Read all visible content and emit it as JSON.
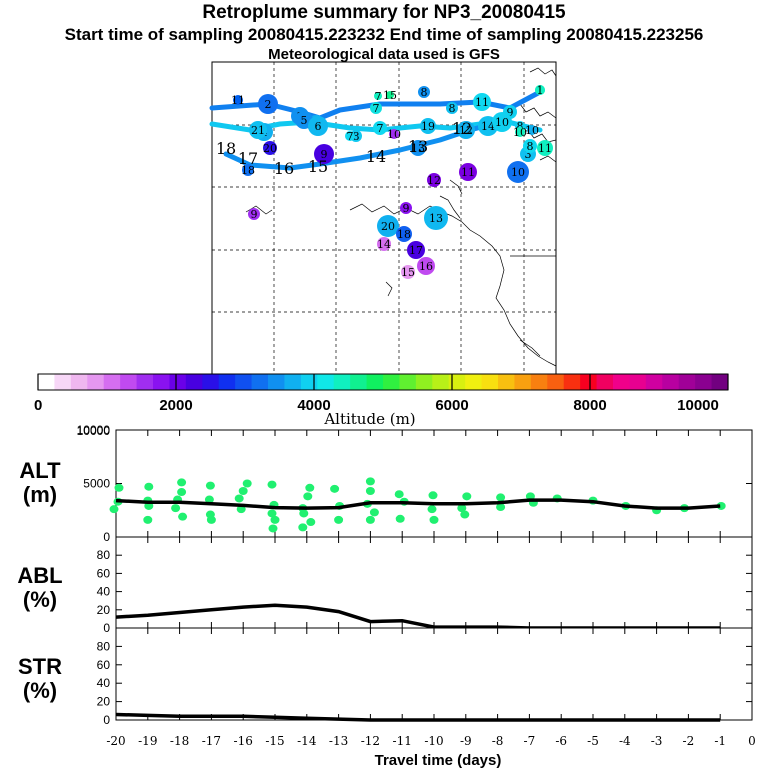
{
  "header": {
    "title": "Retroplume summary for NP3_20080415",
    "line2": "Start time of sampling 20080415.223232     End time of sampling 20080415.223256",
    "line3": "Meteorological data used is GFS"
  },
  "colorbar": {
    "label": "Altitude (m)",
    "ticks": [
      "0",
      "2000",
      "4000",
      "6000",
      "8000",
      "10000"
    ],
    "colors": [
      "#ffffff",
      "#f7d7f7",
      "#efb7ef",
      "#e597f0",
      "#d56ef0",
      "#c04af0",
      "#a02ef0",
      "#8a12f0",
      "#6a00e8",
      "#4800e0",
      "#2a10e8",
      "#1030f0",
      "#1050f0",
      "#1070f0",
      "#1090f0",
      "#10b0f0",
      "#10d0f0",
      "#10e8e8",
      "#10f0c0",
      "#10f090",
      "#10f060",
      "#30f040",
      "#60f030",
      "#90f020",
      "#b8f018",
      "#d8f010",
      "#f0f010",
      "#f8e010",
      "#f8c010",
      "#f8a010",
      "#f88010",
      "#f86010",
      "#f83010",
      "#f80020",
      "#f00060",
      "#f0008a",
      "#e80090",
      "#d000a0",
      "#b800a0",
      "#a00098",
      "#8a0090",
      "#720080"
    ]
  },
  "map": {
    "labels": [
      {
        "t": "11",
        "c": "#0060f0",
        "s": 5
      },
      {
        "t": "2",
        "c": "#1070f0",
        "s": 10
      },
      {
        "t": "3",
        "c": "#1090f0",
        "s": 9
      },
      {
        "t": "4",
        "c": "#10b0f0",
        "s": 9
      },
      {
        "t": "5",
        "c": "#1090f0",
        "s": 9
      },
      {
        "t": "6",
        "c": "#10b8f0",
        "s": 10
      },
      {
        "t": "7",
        "c": "#10e0e0",
        "s": 6
      },
      {
        "t": "7",
        "c": "#10d8f0",
        "s": 7
      },
      {
        "t": "7",
        "c": "#10f0c0",
        "s": 4
      },
      {
        "t": "15",
        "c": "#10f090",
        "s": 4
      },
      {
        "t": "8",
        "c": "#1090f0",
        "s": 6
      },
      {
        "t": "8",
        "c": "#10c0f0",
        "s": 6
      },
      {
        "t": "11",
        "c": "#10d8f0",
        "s": 9
      },
      {
        "t": "9",
        "c": "#10d0f0",
        "s": 7
      },
      {
        "t": "6",
        "c": "#10f0c0",
        "s": 5
      },
      {
        "t": "10",
        "c": "#10b0f0",
        "s": 5
      },
      {
        "t": "4",
        "c": "#10b0f0",
        "s": 9
      },
      {
        "t": "21",
        "c": "#10c0f0",
        "s": 9
      },
      {
        "t": "8",
        "c": "#10c8f0",
        "s": 6
      },
      {
        "t": "7",
        "c": "#10d8f0",
        "s": 5
      },
      {
        "t": "10",
        "c": "#a02ef0",
        "s": 5
      },
      {
        "t": "19",
        "c": "#10c0f0",
        "s": 8
      },
      {
        "t": "12",
        "c": "#10b0f0",
        "s": 9
      },
      {
        "t": "13",
        "c": "#1090f0",
        "s": 8
      },
      {
        "t": "14",
        "c": "#10c0f0",
        "s": 10
      },
      {
        "t": "10",
        "c": "#10d0f0",
        "s": 10
      },
      {
        "t": "8",
        "c": "#10d0f0",
        "s": 5
      },
      {
        "t": "10",
        "c": "#10f0c0",
        "s": 5
      },
      {
        "t": "3",
        "c": "#10c0f0",
        "s": 8
      },
      {
        "t": "8",
        "c": "#10d8f0",
        "s": 7
      },
      {
        "t": "11",
        "c": "#10f0c0",
        "s": 8
      },
      {
        "t": "20",
        "c": "#2a10e8",
        "s": 7
      },
      {
        "t": "18",
        "c": "#1070f0",
        "s": 6
      },
      {
        "t": "9",
        "c": "#4800e0",
        "s": 10
      },
      {
        "t": "14",
        "c": "#10b0f0",
        "s": 0
      },
      {
        "t": "13",
        "c": "#10b0f0",
        "s": 0
      },
      {
        "t": "12",
        "c": "#10d0f0",
        "s": 0
      },
      {
        "t": "16",
        "c": "#10b0f0",
        "s": 0
      },
      {
        "t": "15",
        "c": "#10c0f0",
        "s": 0
      },
      {
        "t": "17",
        "c": "#10c0f0",
        "s": 0
      },
      {
        "t": "18",
        "c": "#10c0f0",
        "s": 0
      },
      {
        "t": "11",
        "c": "#7a00e0",
        "s": 9
      },
      {
        "t": "10",
        "c": "#1070f0",
        "s": 11
      },
      {
        "t": "12",
        "c": "#7a00e0",
        "s": 7
      },
      {
        "t": "13",
        "c": "#10b8f0",
        "s": 12
      },
      {
        "t": "9",
        "c": "#8a12f0",
        "s": 6
      },
      {
        "t": "20",
        "c": "#10b0f0",
        "s": 11
      },
      {
        "t": "18",
        "c": "#1060f0",
        "s": 8
      },
      {
        "t": "14",
        "c": "#d56ef0",
        "s": 7
      },
      {
        "t": "17",
        "c": "#4800e0",
        "s": 9
      },
      {
        "t": "16",
        "c": "#c04af0",
        "s": 9
      },
      {
        "t": "15",
        "c": "#e597f0",
        "s": 7
      },
      {
        "t": "9",
        "c": "#a02ef0",
        "s": 6
      },
      {
        "t": "1",
        "c": "#10f0c0",
        "s": 5
      }
    ]
  },
  "chart_data": [
    {
      "type": "scatter",
      "panel": "ALT",
      "title": "ALT",
      "ylabel_line1": "ALT",
      "ylabel_line2": "(m)",
      "xlabel": "Travel time (days)",
      "xlim": [
        -20,
        0
      ],
      "ylim": [
        0,
        10000
      ],
      "yticks": [
        "0",
        "5000",
        "10000"
      ],
      "xticks": [
        "-20",
        "-19",
        "-18",
        "-17",
        "-16",
        "-15",
        "-14",
        "-13",
        "-12",
        "-11",
        "-10",
        "-9",
        "-8",
        "-7",
        "-6",
        "-5",
        "-4",
        "-3",
        "-2",
        "-1",
        "0"
      ],
      "line_x": [
        -20,
        -19,
        -18,
        -17,
        -16,
        -15,
        -14,
        -13,
        -12,
        -11,
        -10,
        -9,
        -8,
        -7,
        -6,
        -5,
        -4,
        -3,
        -2,
        -1
      ],
      "line_y": [
        3400,
        3250,
        3250,
        3100,
        2950,
        2750,
        2700,
        2750,
        3200,
        3200,
        3100,
        3100,
        3200,
        3450,
        3450,
        3300,
        2900,
        2700,
        2700,
        2900
      ],
      "points": [
        [
          -20,
          4600
        ],
        [
          -20,
          3300
        ],
        [
          -20,
          2600
        ],
        [
          -19,
          4700
        ],
        [
          -19,
          3400
        ],
        [
          -19,
          2900
        ],
        [
          -19,
          1600
        ],
        [
          -18,
          5100
        ],
        [
          -18,
          4200
        ],
        [
          -18,
          3500
        ],
        [
          -18,
          2700
        ],
        [
          -18,
          1900
        ],
        [
          -17,
          4800
        ],
        [
          -17,
          3500
        ],
        [
          -17,
          2100
        ],
        [
          -17,
          1600
        ],
        [
          -16,
          5000
        ],
        [
          -16,
          4300
        ],
        [
          -16,
          3600
        ],
        [
          -16,
          2600
        ],
        [
          -15,
          4900
        ],
        [
          -15,
          3000
        ],
        [
          -15,
          2200
        ],
        [
          -15,
          1600
        ],
        [
          -15,
          800
        ],
        [
          -14,
          4600
        ],
        [
          -14,
          3800
        ],
        [
          -14,
          2700
        ],
        [
          -14,
          2200
        ],
        [
          -14,
          1400
        ],
        [
          -14,
          900
        ],
        [
          -13,
          4500
        ],
        [
          -13,
          2900
        ],
        [
          -13,
          1600
        ],
        [
          -12,
          5200
        ],
        [
          -12,
          4300
        ],
        [
          -12,
          3100
        ],
        [
          -12,
          2300
        ],
        [
          -12,
          1600
        ],
        [
          -11,
          4000
        ],
        [
          -11,
          3300
        ],
        [
          -11,
          1700
        ],
        [
          -10,
          3900
        ],
        [
          -10,
          2600
        ],
        [
          -10,
          1600
        ],
        [
          -9,
          3800
        ],
        [
          -9,
          2700
        ],
        [
          -9,
          2100
        ],
        [
          -8,
          3700
        ],
        [
          -8,
          2800
        ],
        [
          -7,
          3800
        ],
        [
          -7,
          3200
        ],
        [
          -6,
          3600
        ],
        [
          -5,
          3400
        ],
        [
          -4,
          2900
        ],
        [
          -3,
          2500
        ],
        [
          -2,
          2700
        ],
        [
          -1,
          2900
        ]
      ]
    },
    {
      "type": "line",
      "panel": "ABL",
      "ylabel_line1": "ABL",
      "ylabel_line2": "(%)",
      "xlim": [
        -20,
        0
      ],
      "ylim": [
        0,
        100
      ],
      "yticks": [
        "0",
        "20",
        "40",
        "60",
        "80"
      ],
      "x": [
        -20,
        -19,
        -18,
        -17,
        -16,
        -15,
        -14,
        -13,
        -12,
        -11,
        -10,
        -9,
        -8,
        -7,
        -6,
        -5,
        -4,
        -3,
        -2,
        -1
      ],
      "y": [
        12,
        14,
        17,
        20,
        23,
        25,
        23,
        18,
        7,
        8,
        1,
        1,
        1,
        0,
        0,
        0,
        0,
        0,
        0,
        0
      ]
    },
    {
      "type": "line",
      "panel": "STR",
      "ylabel_line1": "STR",
      "ylabel_line2": "(%)",
      "xlim": [
        -20,
        0
      ],
      "ylim": [
        0,
        100
      ],
      "yticks": [
        "0",
        "20",
        "40",
        "60",
        "80"
      ],
      "x": [
        -20,
        -19,
        -18,
        -17,
        -16,
        -15,
        -14,
        -13,
        -12,
        -11,
        -10,
        -9,
        -8,
        -7,
        -6,
        -5,
        -4,
        -3,
        -2,
        -1
      ],
      "y": [
        6,
        5,
        4,
        4,
        4,
        3,
        2,
        1,
        0,
        0,
        0,
        0,
        0,
        0,
        0,
        0,
        0,
        0,
        0,
        0
      ]
    }
  ]
}
